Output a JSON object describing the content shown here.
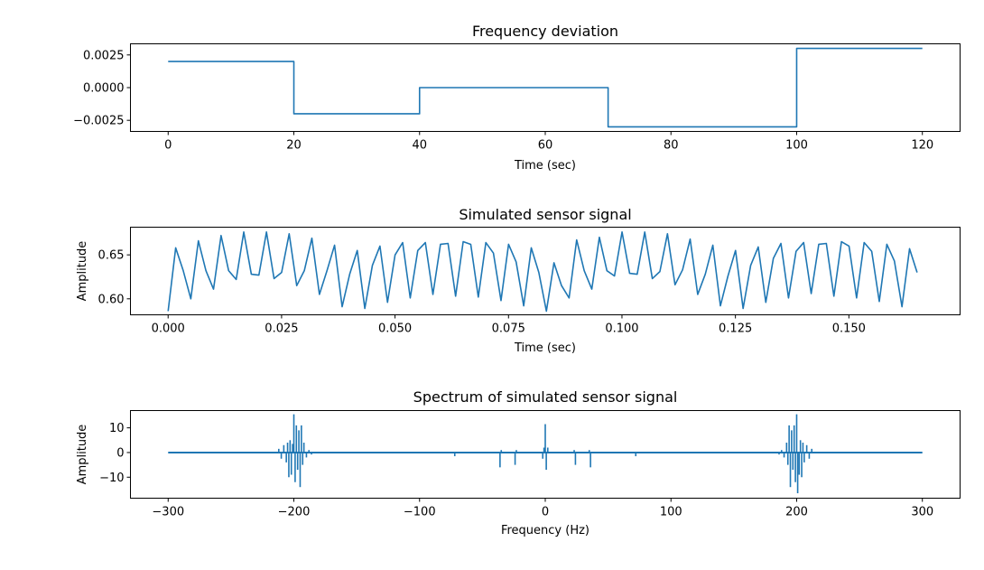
{
  "chart_data": [
    {
      "type": "line",
      "title": "Frequency deviation",
      "xlabel": "Time (sec)",
      "ylabel": "",
      "xlim": [
        -6,
        126
      ],
      "ylim": [
        -0.00335,
        0.00335
      ],
      "xticks": [
        0,
        20,
        40,
        60,
        80,
        100,
        120
      ],
      "xtick_labels": [
        "0",
        "20",
        "40",
        "60",
        "80",
        "100",
        "120"
      ],
      "yticks": [
        0.0025,
        0.0,
        -0.0025
      ],
      "ytick_labels": [
        "0.0025",
        "0.0000",
        "−0.0025"
      ],
      "series_color": "#1f77b4",
      "series": [
        {
          "x": [
            0,
            20,
            20,
            40,
            40,
            70,
            70,
            100,
            100,
            120
          ],
          "y": [
            0.002,
            0.002,
            -0.002,
            -0.002,
            0.0,
            0.0,
            -0.003,
            -0.003,
            0.003,
            0.003
          ]
        }
      ]
    },
    {
      "type": "line",
      "title": "Simulated sensor signal",
      "xlabel": "Time (sec)",
      "ylabel": "Amplitude",
      "xlim": [
        -0.0083,
        0.1745
      ],
      "ylim": [
        0.5818,
        0.6815
      ],
      "xticks": [
        0.0,
        0.025,
        0.05,
        0.075,
        0.1,
        0.125,
        0.15
      ],
      "xtick_labels": [
        "0.000",
        "0.025",
        "0.050",
        "0.075",
        "0.100",
        "0.125",
        "0.150"
      ],
      "yticks": [
        0.6,
        0.65
      ],
      "ytick_labels": [
        "0.60",
        "0.65"
      ],
      "series_color": "#1f77b4",
      "series": [
        {
          "x_start": 0.0,
          "x_step": 0.001667,
          "y": [
            0.586,
            0.658,
            0.632,
            0.6,
            0.666,
            0.632,
            0.611,
            0.672,
            0.632,
            0.622,
            0.676,
            0.628,
            0.627,
            0.676,
            0.623,
            0.63,
            0.674,
            0.615,
            0.632,
            0.669,
            0.605,
            0.632,
            0.661,
            0.591,
            0.628,
            0.655,
            0.589,
            0.638,
            0.66,
            0.596,
            0.65,
            0.664,
            0.601,
            0.655,
            0.664,
            0.605,
            0.662,
            0.663,
            0.603,
            0.665,
            0.662,
            0.602,
            0.664,
            0.652,
            0.598,
            0.662,
            0.642,
            0.592,
            0.658,
            0.63,
            0.586,
            0.641,
            0.615,
            0.601,
            0.667,
            0.632,
            0.611,
            0.67,
            0.632,
            0.626,
            0.676,
            0.629,
            0.628,
            0.676,
            0.623,
            0.631,
            0.674,
            0.616,
            0.633,
            0.668,
            0.605,
            0.628,
            0.661,
            0.592,
            0.626,
            0.655,
            0.589,
            0.638,
            0.659,
            0.596,
            0.646,
            0.663,
            0.601,
            0.654,
            0.664,
            0.606,
            0.662,
            0.663,
            0.603,
            0.665,
            0.66,
            0.601,
            0.664,
            0.654,
            0.597,
            0.662,
            0.643,
            0.591,
            0.657,
            0.63
          ]
        }
      ]
    },
    {
      "type": "line",
      "title": "Spectrum of simulated sensor signal",
      "xlabel": "Frequency (Hz)",
      "ylabel": "Amplitude",
      "xlim": [
        -330,
        330
      ],
      "ylim": [
        -18.5,
        17
      ],
      "xticks": [
        -300,
        -200,
        -100,
        0,
        100,
        200,
        300
      ],
      "xtick_labels": [
        "−300",
        "−200",
        "−100",
        "0",
        "100",
        "200",
        "300"
      ],
      "yticks": [
        10,
        0,
        -10
      ],
      "ytick_labels": [
        "10",
        "0",
        "−10"
      ],
      "series_color": "#1f77b4",
      "spikes": [
        {
          "x": -212,
          "y": 1.5
        },
        {
          "x": -210,
          "y": -2.5
        },
        {
          "x": -208,
          "y": 3.0
        },
        {
          "x": -206,
          "y": -4.0
        },
        {
          "x": -205,
          "y": 4.0
        },
        {
          "x": -204,
          "y": -10.0
        },
        {
          "x": -203,
          "y": 5.0
        },
        {
          "x": -202,
          "y": -9.0
        },
        {
          "x": -201,
          "y": 3.5
        },
        {
          "x": -200,
          "y": 15.5
        },
        {
          "x": -199,
          "y": -12.0
        },
        {
          "x": -198,
          "y": 11.0
        },
        {
          "x": -197,
          "y": -7.0
        },
        {
          "x": -196,
          "y": 9.0
        },
        {
          "x": -195,
          "y": -14.0
        },
        {
          "x": -194,
          "y": 11.0
        },
        {
          "x": -193,
          "y": -5.0
        },
        {
          "x": -192,
          "y": 4.0
        },
        {
          "x": -190,
          "y": -2.0
        },
        {
          "x": -188,
          "y": 1.0
        },
        {
          "x": -186,
          "y": -0.8
        },
        {
          "x": -72,
          "y": -1.5
        },
        {
          "x": -36,
          "y": -6.0
        },
        {
          "x": -35,
          "y": 1.0
        },
        {
          "x": -24,
          "y": -5.0
        },
        {
          "x": -23,
          "y": 1.0
        },
        {
          "x": -2,
          "y": -2.5
        },
        {
          "x": -1,
          "y": 2.0
        },
        {
          "x": 0,
          "y": 11.5
        },
        {
          "x": 0.8,
          "y": -7.0
        },
        {
          "x": 2,
          "y": 2.0
        },
        {
          "x": 24,
          "y": -5.0
        },
        {
          "x": 23,
          "y": 1.0
        },
        {
          "x": 36,
          "y": -6.0
        },
        {
          "x": 35,
          "y": 1.0
        },
        {
          "x": 72,
          "y": -1.5
        },
        {
          "x": 186,
          "y": -0.8
        },
        {
          "x": 188,
          "y": 1.0
        },
        {
          "x": 190,
          "y": -2.0
        },
        {
          "x": 192,
          "y": 4.0
        },
        {
          "x": 193,
          "y": -5.0
        },
        {
          "x": 194,
          "y": 11.0
        },
        {
          "x": 195,
          "y": -14.0
        },
        {
          "x": 196,
          "y": 9.0
        },
        {
          "x": 197,
          "y": -7.0
        },
        {
          "x": 198,
          "y": 11.0
        },
        {
          "x": 199,
          "y": -12.0
        },
        {
          "x": 200,
          "y": 15.5
        },
        {
          "x": 200.8,
          "y": -16.5
        },
        {
          "x": 202,
          "y": -9.0
        },
        {
          "x": 203,
          "y": 5.0
        },
        {
          "x": 204,
          "y": -10.0
        },
        {
          "x": 205,
          "y": 4.0
        },
        {
          "x": 206,
          "y": -4.0
        },
        {
          "x": 208,
          "y": 3.0
        },
        {
          "x": 210,
          "y": -2.5
        },
        {
          "x": 212,
          "y": 1.5
        }
      ]
    }
  ]
}
